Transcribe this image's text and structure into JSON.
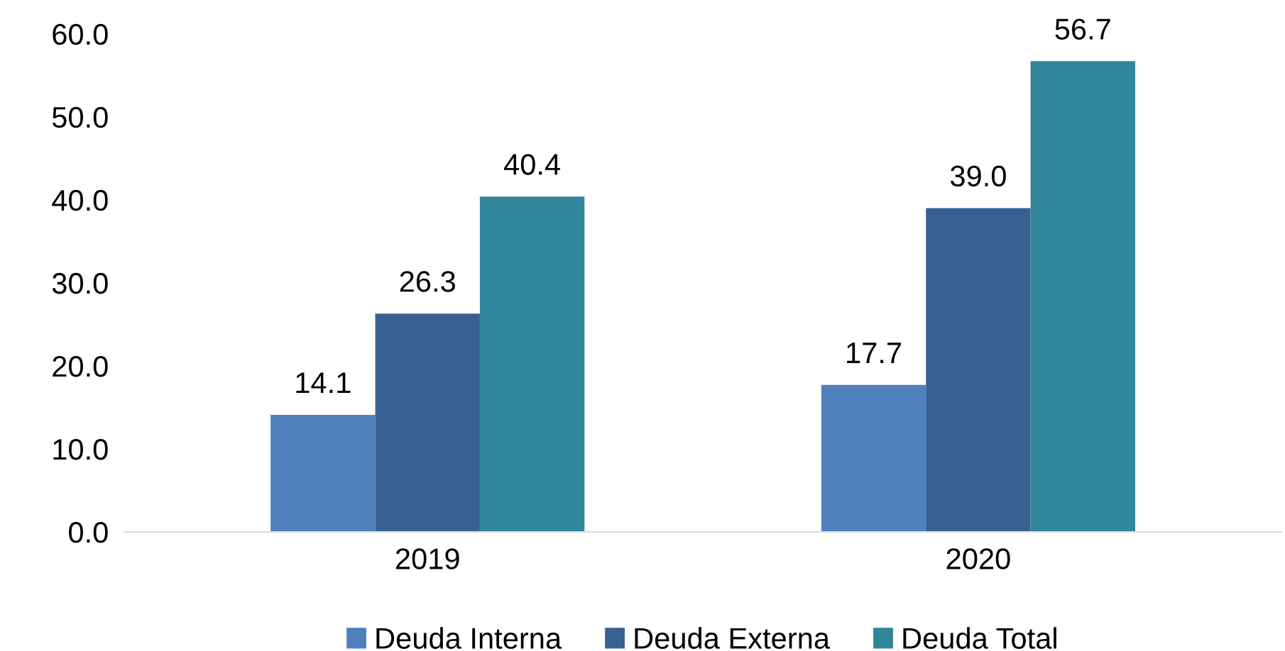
{
  "chart_data": {
    "type": "bar",
    "categories": [
      "2019",
      "2020"
    ],
    "series": [
      {
        "name": "Deuda Interna",
        "color": "#4f81bd",
        "values": [
          14.1,
          17.7
        ],
        "value_labels": [
          "14.1",
          "17.7"
        ]
      },
      {
        "name": "Deuda Externa",
        "color": "#386192",
        "values": [
          26.3,
          39.0
        ],
        "value_labels": [
          "26.3",
          "39.0"
        ]
      },
      {
        "name": "Deuda Total",
        "color": "#31869b",
        "values": [
          40.4,
          56.7
        ],
        "value_labels": [
          "40.4",
          "56.7"
        ]
      }
    ],
    "ylim": [
      0,
      60
    ],
    "yticks": [
      {
        "value": 0,
        "label": "0.0"
      },
      {
        "value": 10,
        "label": "10.0"
      },
      {
        "value": 20,
        "label": "20.0"
      },
      {
        "value": 30,
        "label": "30.0"
      },
      {
        "value": 40,
        "label": "40.0"
      },
      {
        "value": 50,
        "label": "50.0"
      },
      {
        "value": 60,
        "label": "60.0"
      }
    ],
    "grid": false,
    "legend": "bottom"
  }
}
